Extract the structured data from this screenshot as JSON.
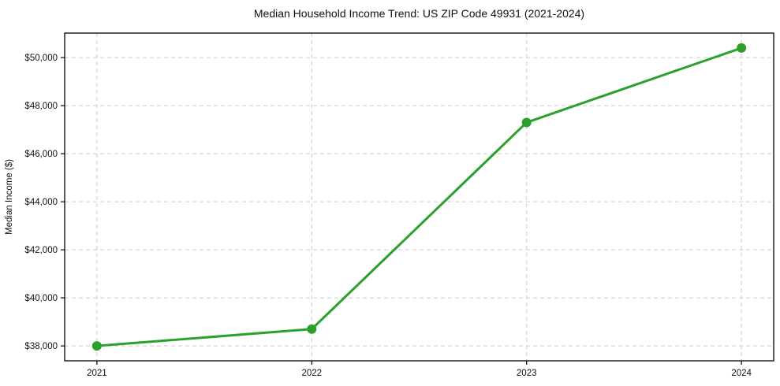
{
  "page": {
    "background": "#ffffff"
  },
  "chart_data": {
    "type": "line",
    "title": "Median Household Income Trend: US ZIP Code 49931 (2021-2024)",
    "xlabel": "",
    "ylabel": "Median Income ($)",
    "categories": [
      "2021",
      "2022",
      "2023",
      "2024"
    ],
    "series": [
      {
        "values": [
          38000,
          38700,
          47300,
          50400
        ],
        "color": "#2ca02c",
        "marker": "circle",
        "marker_radius": 6,
        "line_width": 3
      }
    ],
    "ylim": [
      37380,
      51020
    ],
    "yticks": {
      "values": [
        38000,
        40000,
        42000,
        44000,
        46000,
        48000,
        50000
      ],
      "labels": [
        "$38,000",
        "$40,000",
        "$42,000",
        "$44,000",
        "$46,000",
        "$48,000",
        "$50,000"
      ]
    },
    "grid": "dashed-both",
    "grid_color": "#cccccc",
    "axis_color": "#000000",
    "text_color": "#111111",
    "legend": "none"
  }
}
